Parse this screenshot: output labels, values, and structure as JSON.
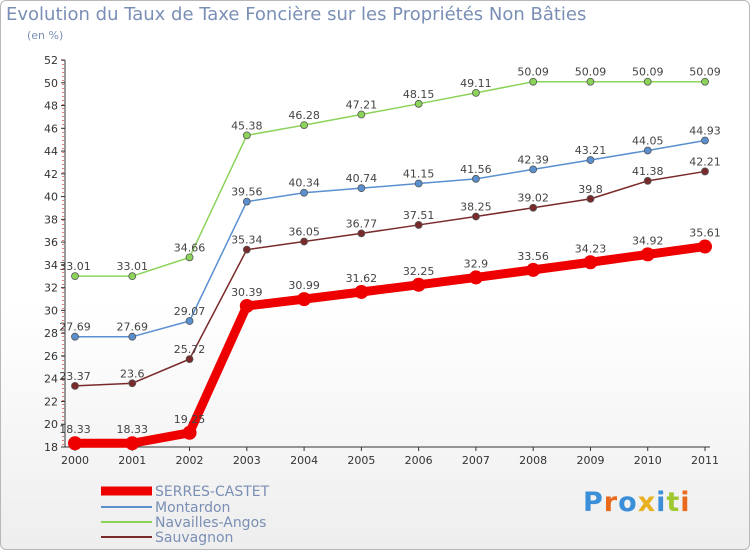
{
  "chart_data": {
    "type": "line",
    "title": "Evolution du Taux de Taxe Foncière sur les Propriétés Non Bâties",
    "unit_label": "(en %)",
    "xlabel": "",
    "ylabel": "",
    "x": [
      "2000",
      "2001",
      "2002",
      "2003",
      "2004",
      "2005",
      "2006",
      "2007",
      "2008",
      "2009",
      "2010",
      "2011"
    ],
    "ylim": [
      18,
      52
    ],
    "yticks": [
      "18",
      "20",
      "22",
      "24",
      "26",
      "28",
      "30",
      "32",
      "34",
      "36",
      "38",
      "40",
      "42",
      "44",
      "46",
      "48",
      "50",
      "52"
    ],
    "grid": false,
    "series": [
      {
        "name": "SERRES-CASTET",
        "color": "#ee0000",
        "values": [
          18.33,
          18.33,
          19.25,
          30.39,
          30.99,
          31.62,
          32.25,
          32.9,
          33.56,
          34.23,
          34.92,
          35.61
        ],
        "labels": [
          "18.33",
          "18.33",
          "19.25",
          "30.39",
          "30.99",
          "31.62",
          "32.25",
          "32.9",
          "33.56",
          "34.23",
          "34.92",
          "35.61"
        ]
      },
      {
        "name": "Montardon",
        "color": "#5a8fd0",
        "values": [
          27.69,
          27.69,
          29.07,
          39.56,
          40.34,
          40.74,
          41.15,
          41.56,
          42.39,
          43.21,
          44.05,
          44.93
        ],
        "labels": [
          "27.69",
          "27.69",
          "29.07",
          "39.56",
          "40.34",
          "40.74",
          "41.15",
          "41.56",
          "42.39",
          "43.21",
          "44.05",
          "44.93"
        ]
      },
      {
        "name": "Navailles-Angos",
        "color": "#8cd35a",
        "values": [
          33.01,
          33.01,
          34.66,
          45.38,
          46.28,
          47.21,
          48.15,
          49.11,
          50.09,
          50.09,
          50.09,
          50.09
        ],
        "labels": [
          "33.01",
          "33.01",
          "34.66",
          "45.38",
          "46.28",
          "47.21",
          "48.15",
          "49.11",
          "50.09",
          "50.09",
          "50.09",
          "50.09"
        ]
      },
      {
        "name": "Sauvagnon",
        "color": "#7a2a2a",
        "values": [
          23.37,
          23.6,
          25.72,
          35.34,
          36.05,
          36.77,
          37.51,
          38.25,
          39.02,
          39.8,
          41.38,
          42.21
        ],
        "labels": [
          "23.37",
          "23.6",
          "25.72",
          "35.34",
          "36.05",
          "36.77",
          "37.51",
          "38.25",
          "39.02",
          "39.8",
          "41.38",
          "42.21"
        ]
      }
    ]
  },
  "brand": {
    "logo_text": "Proxiti"
  }
}
